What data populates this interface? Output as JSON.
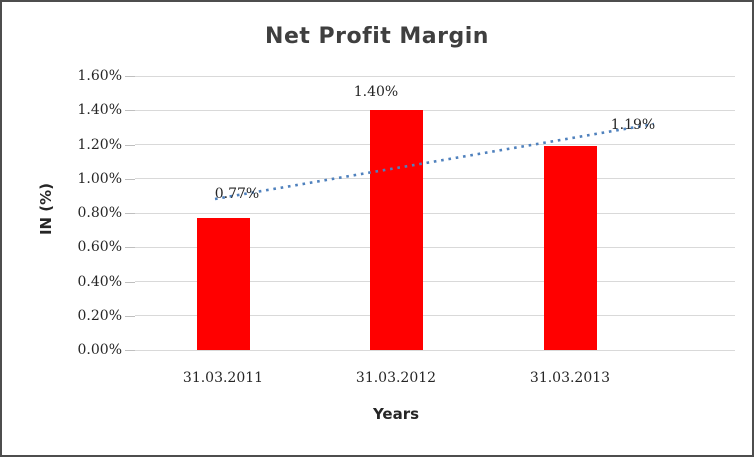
{
  "chart_data": {
    "type": "bar",
    "title": "Net Profit Margin",
    "xlabel": "Years",
    "ylabel": "IN (%)",
    "categories": [
      "31.03.2011",
      "31.03.2012",
      "31.03.2013"
    ],
    "values": [
      0.77,
      1.4,
      1.19
    ],
    "data_labels": [
      "0.77%",
      "1.40%",
      "1.19%"
    ],
    "unit": "%",
    "ylim": [
      0,
      1.6
    ],
    "ytick_step": 0.2,
    "ytick_labels": [
      "0.00%",
      "0.20%",
      "0.40%",
      "0.60%",
      "0.80%",
      "1.00%",
      "1.20%",
      "1.40%",
      "1.60%"
    ],
    "grid": true,
    "legend": "none",
    "bar_color": "#ff0000",
    "trendline": {
      "type": "linear",
      "style": "dotted",
      "color": "#4f81bd"
    },
    "colors": {
      "title_text": "#3f3f3f",
      "tick_text": "#262626",
      "gridline": "#d9d9d9",
      "frame_border": "#4d4d4d"
    }
  }
}
